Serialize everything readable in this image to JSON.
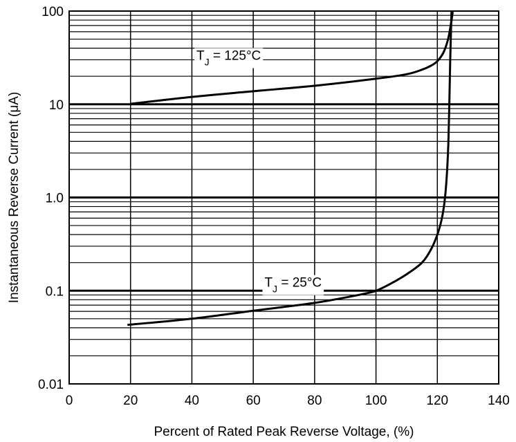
{
  "chart_data": {
    "type": "line",
    "title": "",
    "xlabel": "Percent of Rated Peak Reverse Voltage, (%)",
    "ylabel": "Instantaneous Reverse Current (μA)",
    "xlim": [
      0,
      140
    ],
    "ylim": [
      0.01,
      100
    ],
    "yscale": "log",
    "grid": true,
    "x_ticks": [
      "0",
      "20",
      "40",
      "60",
      "80",
      "100",
      "120",
      "140"
    ],
    "y_ticks": [
      {
        "value": 100,
        "label": "100"
      },
      {
        "value": 10,
        "label": "10"
      },
      {
        "value": 1,
        "label": "1.0"
      },
      {
        "value": 0.1,
        "label": "0.1"
      },
      {
        "value": 0.01,
        "label": "0.01"
      }
    ],
    "series": [
      {
        "name": "TJ = 125°C",
        "label_main": "T",
        "label_sub": "J",
        "label_rest": " = 125°C",
        "label_at": {
          "x": 52,
          "y": 30
        },
        "points": [
          [
            20,
            10.1
          ],
          [
            40,
            12
          ],
          [
            60,
            13.8
          ],
          [
            80,
            15.8
          ],
          [
            100,
            18.8
          ],
          [
            110,
            21
          ],
          [
            115,
            23.5
          ],
          [
            118,
            26
          ],
          [
            120,
            29
          ],
          [
            122,
            36
          ],
          [
            123.5,
            50
          ],
          [
            124.5,
            75
          ],
          [
            125,
            98
          ]
        ]
      },
      {
        "name": "TJ = 25°C",
        "label_main": "T",
        "label_sub": "J",
        "label_rest": " = 25°C",
        "label_at": {
          "x": 73,
          "y": 0.11
        },
        "points": [
          [
            19,
            0.043
          ],
          [
            40,
            0.05
          ],
          [
            60,
            0.061
          ],
          [
            80,
            0.074
          ],
          [
            95,
            0.091
          ],
          [
            100,
            0.1
          ],
          [
            105,
            0.12
          ],
          [
            110,
            0.15
          ],
          [
            115,
            0.2
          ],
          [
            118,
            0.28
          ],
          [
            120,
            0.4
          ],
          [
            121.5,
            0.6
          ],
          [
            122.5,
            1.0
          ],
          [
            123.2,
            2
          ],
          [
            123.6,
            4
          ],
          [
            123.9,
            10
          ],
          [
            124.2,
            30
          ],
          [
            124.5,
            70
          ],
          [
            124.6,
            98
          ]
        ]
      }
    ]
  }
}
